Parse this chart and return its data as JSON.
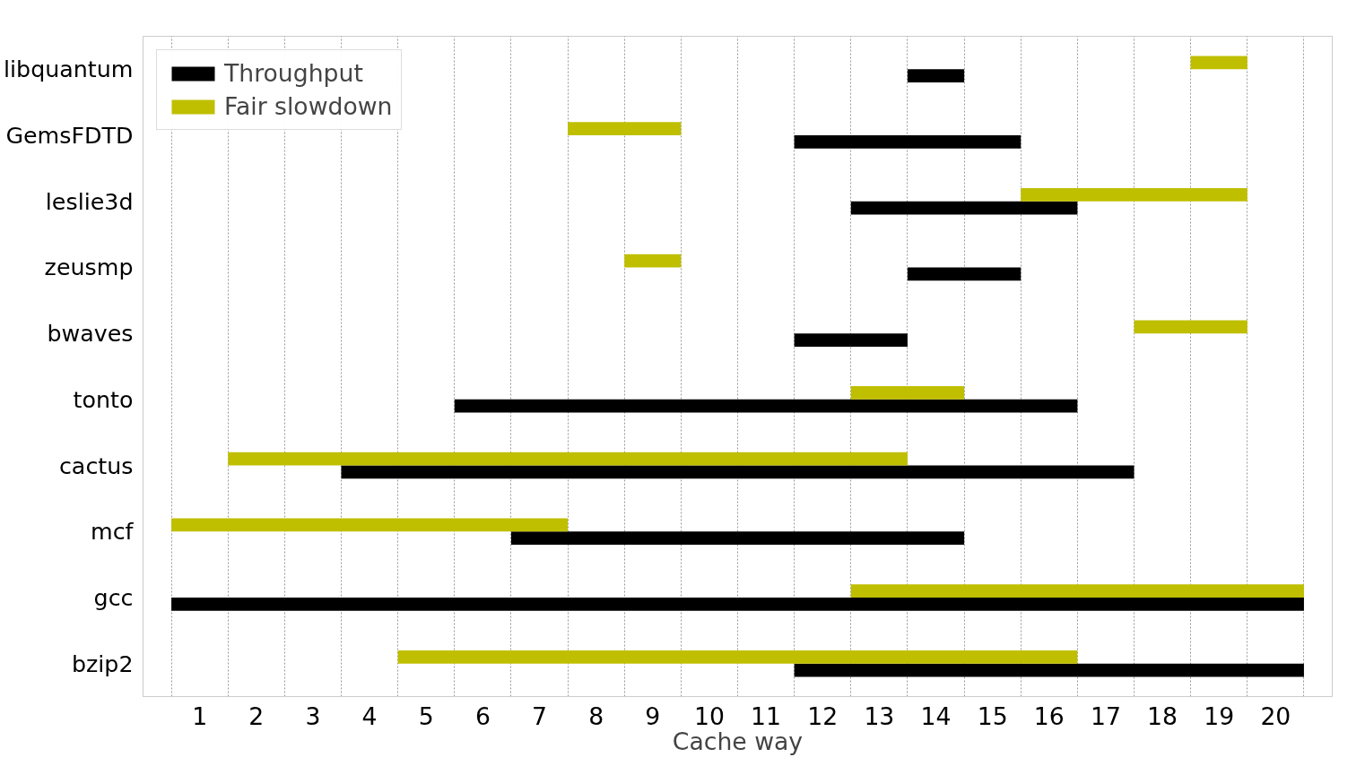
{
  "chart_data": {
    "type": "bar",
    "orientation": "horizontal",
    "xlabel": "Cache way",
    "categories": [
      "libquantum",
      "GemsFDTD",
      "leslie3d",
      "zeusmp",
      "bwaves",
      "tonto",
      "cactus",
      "mcf",
      "gcc",
      "bzip2"
    ],
    "series": [
      {
        "name": "Throughput",
        "color": "#000000",
        "base": [
          13.5,
          11.5,
          12.5,
          13.5,
          11.5,
          5.5,
          3.5,
          6.5,
          0.5,
          11.5
        ],
        "values": [
          1,
          4,
          4,
          2,
          2,
          11,
          14,
          8,
          20,
          9
        ]
      },
      {
        "name": "Fair slowdown",
        "color": "#bfbf00",
        "base": [
          18.5,
          7.5,
          15.5,
          8.5,
          17.5,
          12.5,
          1.5,
          0.5,
          12.5,
          4.5
        ],
        "values": [
          1,
          2,
          4,
          1,
          2,
          2,
          12,
          7,
          8,
          12
        ]
      }
    ],
    "xlim": [
      0,
      21
    ],
    "xticks": [
      {
        "value": 0.5,
        "label": null
      },
      1,
      {
        "value": 1.5,
        "label": null
      },
      2,
      {
        "value": 2.5,
        "label": null
      },
      3,
      {
        "value": 3.5,
        "label": null
      },
      4,
      {
        "value": 4.5,
        "label": null
      },
      5,
      {
        "value": 5.5,
        "label": null
      },
      6,
      {
        "value": 6.5,
        "label": null
      },
      7,
      {
        "value": 7.5,
        "label": null
      },
      8,
      {
        "value": 8.5,
        "label": null
      },
      9,
      {
        "value": 9.5,
        "label": null
      },
      10,
      {
        "value": 10.5,
        "label": null
      },
      11,
      {
        "value": 11.5,
        "label": null
      },
      12,
      {
        "value": 12.5,
        "label": null
      },
      13,
      {
        "value": 13.5,
        "label": null
      },
      14,
      {
        "value": 14.5,
        "label": null
      },
      15,
      {
        "value": 15.5,
        "label": null
      },
      16,
      {
        "value": 16.5,
        "label": null
      },
      17,
      {
        "value": 17.5,
        "label": null
      },
      18,
      {
        "value": 18.5,
        "label": null
      },
      19,
      {
        "value": 19.5,
        "label": null
      },
      20,
      {
        "value": 20.5,
        "label": null
      }
    ],
    "grid": "x",
    "legend": "top left"
  }
}
